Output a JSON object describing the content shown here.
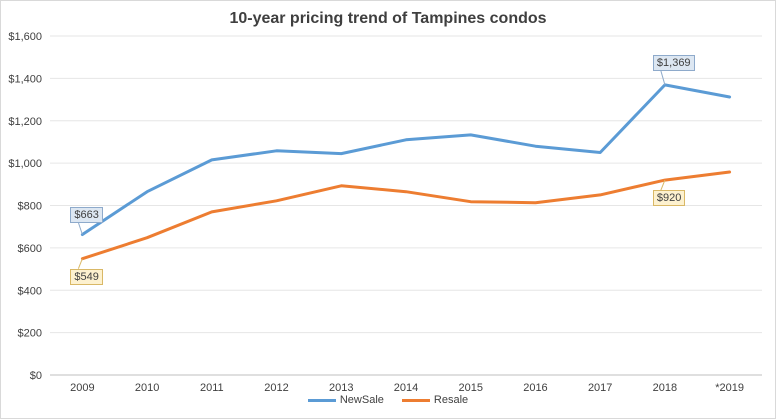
{
  "chart_data": {
    "type": "line",
    "title": "10-year pricing trend of Tampines condos",
    "xlabel": "",
    "ylabel": "",
    "categories": [
      "2009",
      "2010",
      "2011",
      "2012",
      "2013",
      "2014",
      "2015",
      "2016",
      "2017",
      "2018",
      "*2019"
    ],
    "ylim": [
      0,
      1600
    ],
    "yticks": [
      0,
      200,
      400,
      600,
      800,
      1000,
      1200,
      1400,
      1600
    ],
    "ytick_labels": [
      "$0",
      "$200",
      "$400",
      "$600",
      "$800",
      "$1,000",
      "$1,200",
      "$1,400",
      "$1,600"
    ],
    "grid": true,
    "legend_position": "bottom",
    "series": [
      {
        "name": "NewSale",
        "color": "#5b9bd5",
        "values": [
          663,
          865,
          1015,
          1058,
          1045,
          1110,
          1133,
          1080,
          1050,
          1369,
          1312
        ]
      },
      {
        "name": "Resale",
        "color": "#ed7d31",
        "values": [
          549,
          648,
          770,
          822,
          893,
          865,
          818,
          813,
          850,
          920,
          958
        ]
      }
    ],
    "annotations": [
      {
        "series": 0,
        "index": 0,
        "text": "$663",
        "bg": "#dde7f2",
        "border": "#8eaacb"
      },
      {
        "series": 0,
        "index": 9,
        "text": "$1,369",
        "bg": "#dde7f2",
        "border": "#8eaacb"
      },
      {
        "series": 1,
        "index": 0,
        "text": "$549",
        "bg": "#fdf1cf",
        "border": "#d9b866"
      },
      {
        "series": 1,
        "index": 9,
        "text": "$920",
        "bg": "#fdf1cf",
        "border": "#d9b866"
      }
    ]
  }
}
